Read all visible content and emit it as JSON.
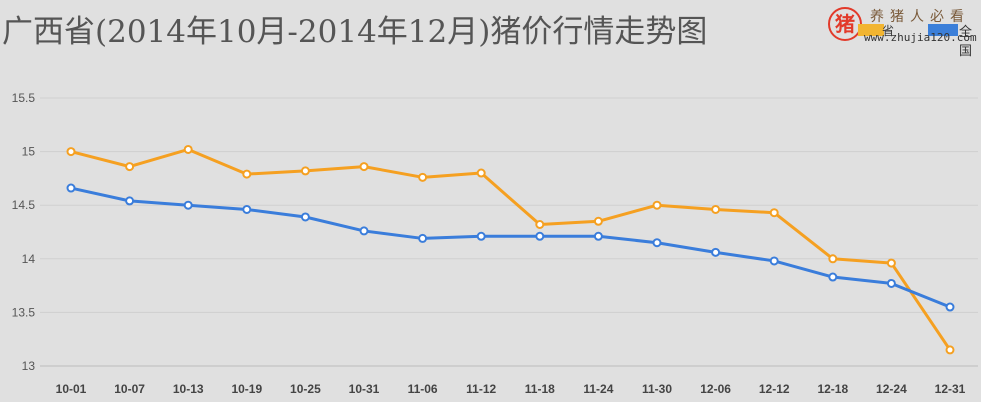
{
  "title": "广西省(2014年10月-2014年12月)猪价行情走势图",
  "watermark": {
    "logo_glyph": "猪",
    "text": "养猪人必看",
    "sub_left": "省",
    "sub_right": "全国",
    "url": "www.zhujia120.com"
  },
  "colors": {
    "background": "#e0e0e0",
    "grid": "#cfcfcf",
    "series_orange": "#f5a021",
    "series_blue": "#3a7ddb"
  },
  "chart_data": {
    "type": "line",
    "title": "广西省(2014年10月-2014年12月)猪价行情走势图",
    "xlabel": "",
    "ylabel": "",
    "ylim": [
      13,
      15.5
    ],
    "yticks": [
      13,
      13.5,
      14,
      14.5,
      15,
      15.5
    ],
    "ytick_labels": [
      "13",
      "13.5",
      "14",
      "14.5",
      "15",
      "15.5"
    ],
    "grid": true,
    "legend": "none",
    "categories": [
      "10-01",
      "10-07",
      "10-13",
      "10-19",
      "10-25",
      "10-31",
      "11-06",
      "11-12",
      "11-18",
      "11-24",
      "11-30",
      "12-06",
      "12-12",
      "12-18",
      "12-24",
      "12-31"
    ],
    "series": [
      {
        "name": "广西省",
        "color": "#f5a021",
        "values": [
          15.0,
          14.86,
          15.02,
          14.79,
          14.82,
          14.86,
          14.76,
          14.8,
          14.32,
          14.35,
          14.5,
          14.46,
          14.43,
          14.0,
          13.96,
          13.15
        ]
      },
      {
        "name": "全国",
        "color": "#3a7ddb",
        "values": [
          14.66,
          14.54,
          14.5,
          14.46,
          14.39,
          14.26,
          14.19,
          14.21,
          14.21,
          14.21,
          14.15,
          14.06,
          13.98,
          13.83,
          13.77,
          13.55
        ]
      }
    ]
  }
}
